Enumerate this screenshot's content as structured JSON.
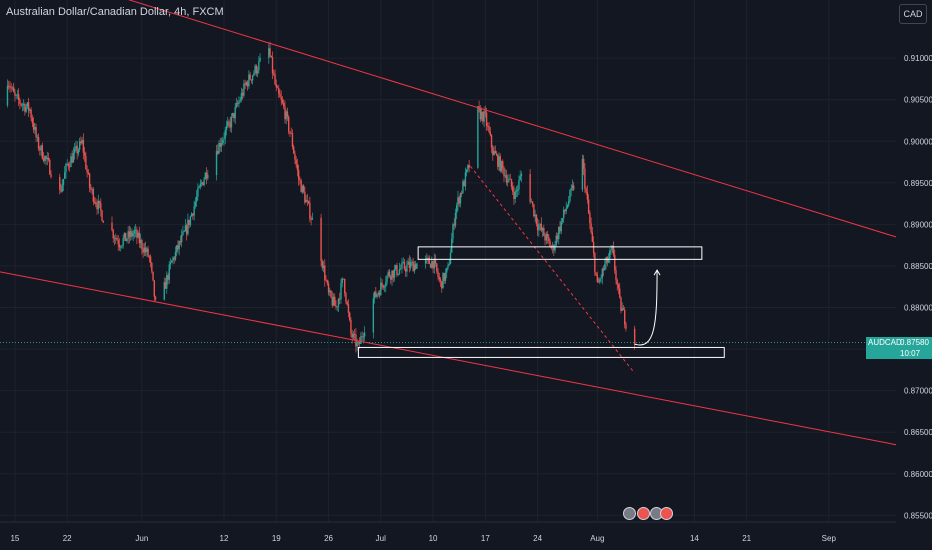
{
  "header": {
    "title": "Australian Dollar/Canadian Dollar, 4h, FXCM",
    "currency_button": "CAD"
  },
  "price_tag": {
    "symbol": "AUDCAD",
    "price": "0.87580",
    "countdown": "10:07"
  },
  "colors": {
    "background": "#131722",
    "up": "#26a69a",
    "down": "#ef5350",
    "trendline": "#f23645",
    "grid": "#1e222d",
    "text": "#d1d4dc"
  },
  "indicators": [
    {
      "name": "dividend-icon",
      "color": "#787b86"
    },
    {
      "name": "earnings-icon",
      "color": "#ef5350"
    },
    {
      "name": "split-icon",
      "color": "#787b86"
    },
    {
      "name": "news-icon",
      "color": "#ef5350"
    }
  ],
  "chart_data": {
    "type": "candlestick",
    "symbol": "AUDCAD",
    "timeframe": "4h",
    "y_ticks": [
      "0.91000",
      "0.90500",
      "0.90000",
      "0.89500",
      "0.89000",
      "0.88500",
      "0.88000",
      "0.87500",
      "0.87000",
      "0.86500",
      "0.86000",
      "0.85500"
    ],
    "x_ticks": [
      "15",
      "22",
      "Jun",
      "12",
      "19",
      "26",
      "Jul",
      "10",
      "17",
      "24",
      "Aug",
      "14",
      "21",
      "Sep"
    ],
    "ylim": [
      0.8542,
      0.917
    ],
    "x_range": [
      "May 13",
      "Sep 10"
    ],
    "last_price": 0.8758,
    "close_path": [
      [
        "May 13",
        0.9043
      ],
      [
        "May 14",
        0.9075
      ],
      [
        "May 15",
        0.9052
      ],
      [
        "May 17",
        0.9038
      ],
      [
        "May 18",
        0.8998
      ],
      [
        "May 20",
        0.8962
      ],
      [
        "May 21",
        0.8938
      ],
      [
        "May 22",
        0.8972
      ],
      [
        "May 24",
        0.8998
      ],
      [
        "May 25",
        0.8945
      ],
      [
        "May 27",
        0.8905
      ],
      [
        "May 29",
        0.8878
      ],
      [
        "May 31",
        0.889
      ],
      [
        "Jun 2",
        0.886
      ],
      [
        "Jun 3",
        0.8792
      ],
      [
        "Jun 5",
        0.8855
      ],
      [
        "Jun 7",
        0.8895
      ],
      [
        "Jun 9",
        0.895
      ],
      [
        "Jun 11",
        0.899
      ],
      [
        "Jun 13",
        0.9025
      ],
      [
        "Jun 15",
        0.907
      ],
      [
        "Jun 18",
        0.911
      ],
      [
        "Jun 19",
        0.906
      ],
      [
        "Jun 20",
        0.904
      ],
      [
        "Jun 21",
        0.9005
      ],
      [
        "Jun 22",
        0.8955
      ],
      [
        "Jun 24",
        0.89
      ],
      [
        "Jun 25",
        0.8862
      ],
      [
        "Jun 26",
        0.8815
      ],
      [
        "Jun 27",
        0.88
      ],
      [
        "Jun 28",
        0.8835
      ],
      [
        "Jun 29",
        0.8768
      ],
      [
        "Jun 30",
        0.8752
      ],
      [
        "Jul 1",
        0.8783
      ],
      [
        "Jul 2",
        0.881
      ],
      [
        "Jul 4",
        0.884
      ],
      [
        "Jul 6",
        0.8848
      ],
      [
        "Jul 8",
        0.8853
      ],
      [
        "Jul 10",
        0.8855
      ],
      [
        "Jul 11",
        0.8828
      ],
      [
        "Jul 12",
        0.8845
      ],
      [
        "Jul 13",
        0.8918
      ],
      [
        "Jul 15",
        0.8975
      ],
      [
        "Jul 16",
        0.9035
      ],
      [
        "Jul 17",
        0.9028
      ],
      [
        "Jul 18",
        0.8988
      ],
      [
        "Jul 20",
        0.8955
      ],
      [
        "Jul 21",
        0.8935
      ],
      [
        "Jul 22",
        0.8965
      ],
      [
        "Jul 24",
        0.89
      ],
      [
        "Jul 26",
        0.887
      ],
      [
        "Jul 28",
        0.8925
      ],
      [
        "Jul 29",
        0.895
      ],
      [
        "Jul 30",
        0.8975
      ],
      [
        "Jul 31",
        0.89
      ],
      [
        "Aug 1",
        0.8825
      ],
      [
        "Aug 2",
        0.885
      ],
      [
        "Aug 3",
        0.8868
      ],
      [
        "Aug 4",
        0.8805
      ],
      [
        "Aug 5",
        0.8778
      ],
      [
        "Aug 6",
        0.8758
      ]
    ],
    "trendlines": [
      {
        "name": "upper-channel-line",
        "from": [
          "May 21",
          0.9196
        ],
        "to": [
          "Sep 10",
          0.8885
        ]
      },
      {
        "name": "lower-channel-line",
        "from": [
          "May 13",
          0.8843
        ],
        "to": [
          "Sep 10",
          0.8635
        ]
      },
      {
        "name": "dashed-projection-line",
        "from": [
          "Jul 15",
          0.897
        ],
        "to": [
          "Aug 6",
          0.8721
        ]
      }
    ],
    "zones": [
      {
        "name": "resistance-zone",
        "from": "Jul 8",
        "to": "Aug 15",
        "top": 0.8873,
        "bottom": 0.8858
      },
      {
        "name": "support-zone",
        "from": "Jun 30",
        "to": "Aug 18",
        "top": 0.8752,
        "bottom": 0.874
      }
    ],
    "arrow": {
      "from": [
        "Aug 6",
        0.8756
      ],
      "to": [
        "Aug 9",
        0.8845
      ]
    }
  }
}
